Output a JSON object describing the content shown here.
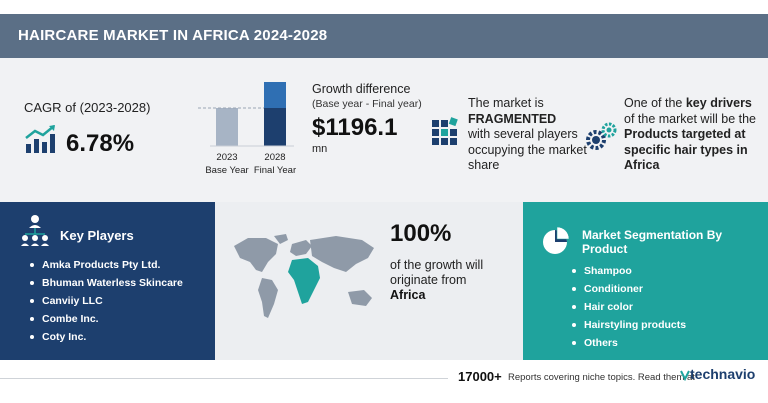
{
  "header": {
    "title": "HAIRCARE MARKET IN AFRICA 2024-2028"
  },
  "cagr": {
    "label": "CAGR of (2023-2028)",
    "value": "6.78%"
  },
  "growth": {
    "bars": [
      {
        "year": "2023",
        "caption": "Base Year"
      },
      {
        "year": "2028",
        "caption": "Final Year"
      }
    ],
    "label": "Growth difference",
    "sub": "(Base year - Final year)",
    "value": "$1196.1",
    "unit": "mn"
  },
  "fragmented": {
    "line1": "The market is",
    "bold": "FRAGMENTED",
    "rest": "with several players occupying the market share"
  },
  "drivers": {
    "pre": "One of the",
    "bold1": "key drivers",
    "mid": "of the market will be the",
    "bold2": "Products targeted at specific hair types in Africa"
  },
  "key_players": {
    "title": "Key Players",
    "items": [
      "Amka Products Pty Ltd.",
      "Bhuman Waterless Skincare",
      "Canviiy LLC",
      "Combe Inc.",
      "Coty Inc."
    ]
  },
  "share": {
    "value": "100%",
    "text": "of the growth will originate from",
    "region": "Africa"
  },
  "segmentation": {
    "title": "Market Segmentation By Product",
    "items": [
      "Shampoo",
      "Conditioner",
      "Hair color",
      "Hairstyling products",
      "Others"
    ]
  },
  "footer": {
    "count": "17000+",
    "text": "Reports covering niche topics. Read them at",
    "logo": "technavio"
  },
  "colors": {
    "header": "#5b6f86",
    "navy": "#1d3f6e",
    "teal": "#1fa39d",
    "bar_base": "#a7b4c5",
    "bar_top": "#2f6fb3",
    "africa": "#1fa39d"
  }
}
